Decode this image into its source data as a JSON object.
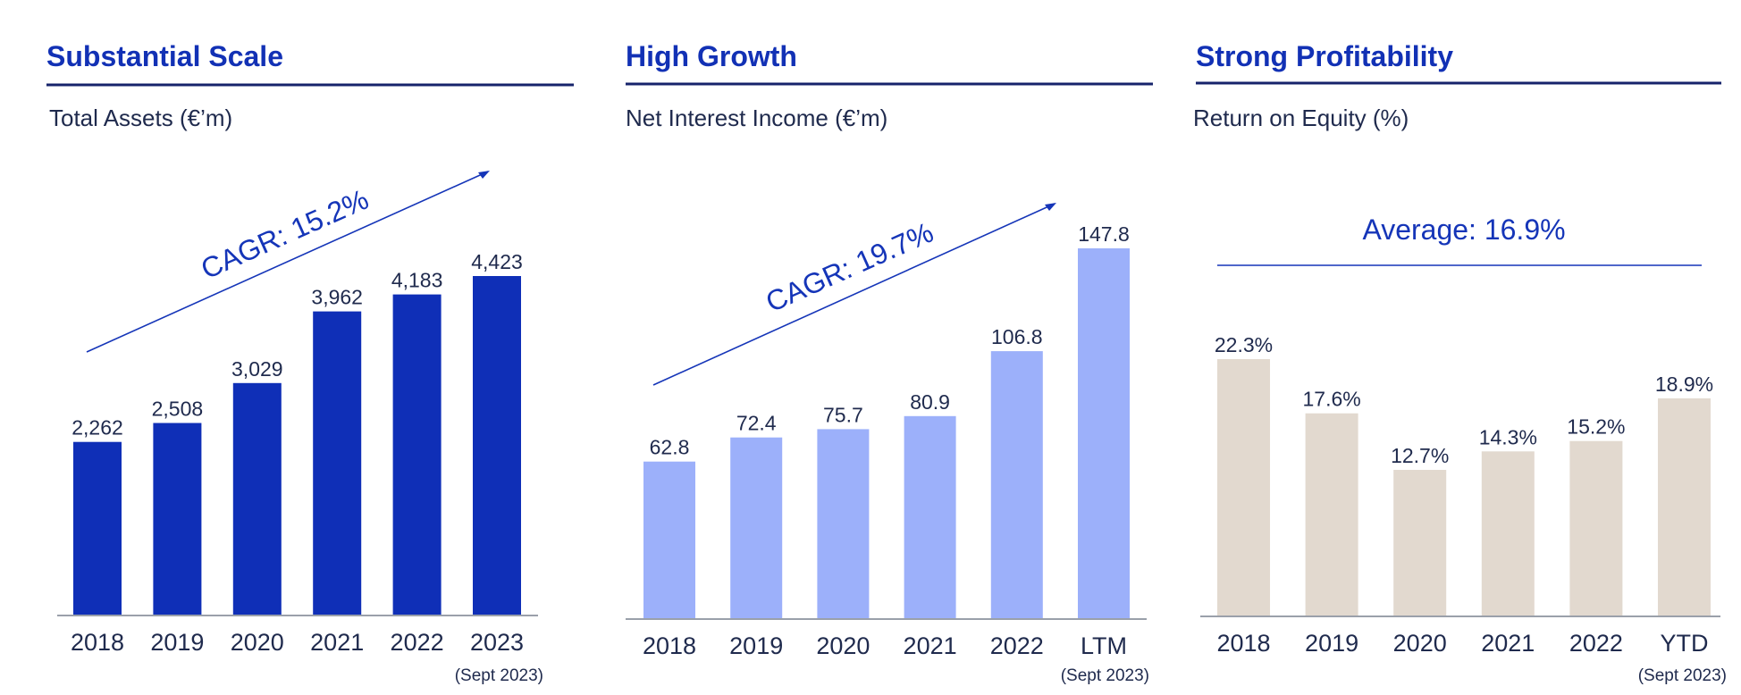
{
  "colors": {
    "title": "#1231b5",
    "text": "#1f2a4d",
    "rule": "#16236b",
    "axis": "#9aa0aa",
    "cagr": "#1535b8",
    "bar_assets": "#0f2fb7",
    "bar_nii": "#9cb0fa",
    "bar_roe": "#e2d9cf"
  },
  "chart_data": [
    {
      "type": "bar",
      "title": "Substantial Scale",
      "subtitle": "Total Assets (€’m)",
      "categories": [
        "2018",
        "2019",
        "2020",
        "2021",
        "2022",
        "2023"
      ],
      "category_note": "(Sept 2023)",
      "values": [
        2262,
        2508,
        3029,
        3962,
        4183,
        4423
      ],
      "value_labels": [
        "2,262",
        "2,508",
        "3,029",
        "3,962",
        "4,183",
        "4,423"
      ],
      "annotation": "CAGR: 15.2%",
      "xlabel": "",
      "ylabel": "",
      "ylim": [
        0,
        4423
      ],
      "grid": false
    },
    {
      "type": "bar",
      "title": "High Growth",
      "subtitle": "Net Interest Income (€’m)",
      "categories": [
        "2018",
        "2019",
        "2020",
        "2021",
        "2022",
        "LTM"
      ],
      "category_note": "(Sept 2023)",
      "values": [
        62.8,
        72.4,
        75.7,
        80.9,
        106.8,
        147.8
      ],
      "value_labels": [
        "62.8",
        "72.4",
        "75.7",
        "80.9",
        "106.8",
        "147.8"
      ],
      "annotation": "CAGR: 19.7%",
      "xlabel": "",
      "ylabel": "",
      "ylim": [
        0,
        147.8
      ],
      "grid": false
    },
    {
      "type": "bar",
      "title": "Strong Profitability",
      "subtitle": "Return on Equity (%)",
      "categories": [
        "2018",
        "2019",
        "2020",
        "2021",
        "2022",
        "YTD"
      ],
      "category_note": "(Sept 2023)",
      "values": [
        22.3,
        17.6,
        12.7,
        14.3,
        15.2,
        18.9
      ],
      "value_labels": [
        "22.3%",
        "17.6%",
        "12.7%",
        "14.3%",
        "15.2%",
        "18.9%"
      ],
      "annotation": "Average: 16.9%",
      "xlabel": "",
      "ylabel": "",
      "ylim": [
        0,
        22.3
      ],
      "grid": false
    }
  ]
}
